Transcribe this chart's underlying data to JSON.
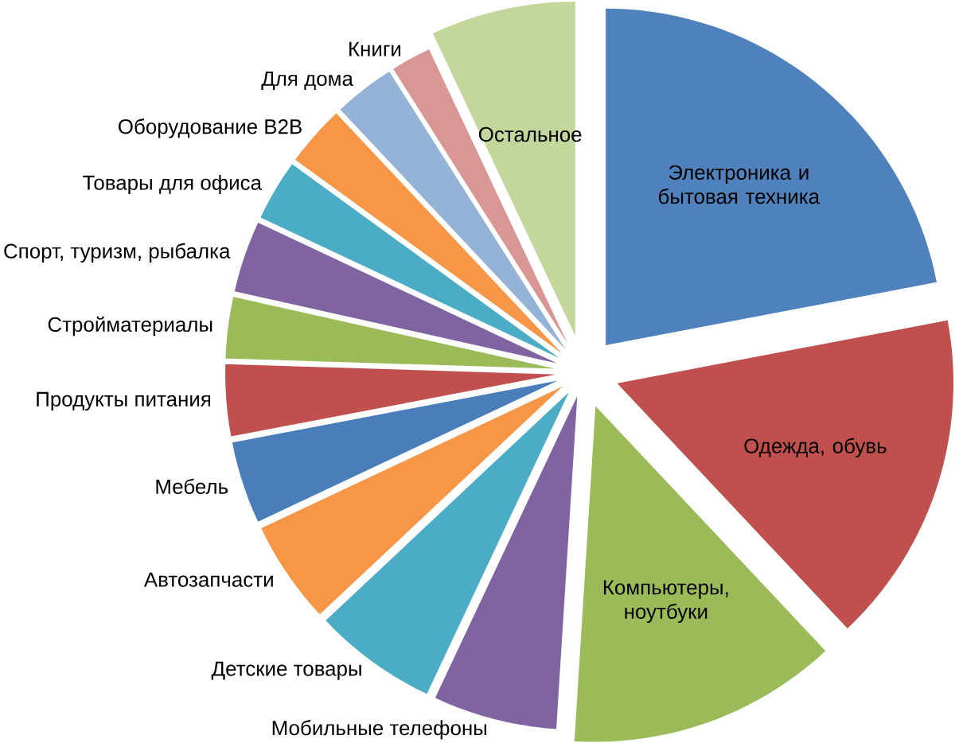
{
  "chart_data": {
    "type": "pie",
    "categories": [
      "Электроника и бытовая техника",
      "Одежда, обувь",
      "Компьютеры, ноутбуки",
      "Мобильные телефоны",
      "Детские товары",
      "Автозапчасти",
      "Мебель",
      "Продукты питания",
      "Стройматериалы",
      "Спорт, туризм, рыбалка",
      "Товары для офиса",
      "Оборудование B2B",
      "Для дома",
      "Книги",
      "Остальное"
    ],
    "values": [
      22,
      16,
      13,
      6,
      6,
      5,
      4,
      3.5,
      3,
      3.5,
      3,
      3,
      3,
      2,
      7
    ],
    "colors": [
      "#4f81bd",
      "#c0504d",
      "#9bbb59",
      "#8064a2",
      "#4bacc6",
      "#f79646",
      "#4a7ebb",
      "#c0504d",
      "#9bbb59",
      "#8064a2",
      "#4bacc6",
      "#f79646",
      "#95b3d7",
      "#d99694",
      "#c3d69b"
    ]
  }
}
